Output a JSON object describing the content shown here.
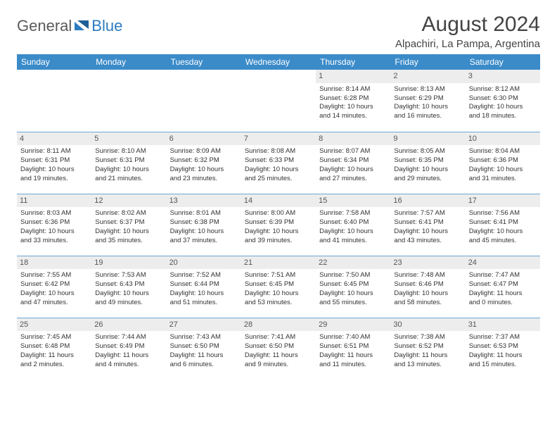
{
  "logo": {
    "general": "General",
    "blue": "Blue"
  },
  "title": "August 2024",
  "location": "Alpachiri, La Pampa, Argentina",
  "colors": {
    "header_bg": "#3b8bc9",
    "daynum_bg": "#ededed",
    "row_border": "#6aa8d4",
    "logo_gray": "#5a5a5a",
    "logo_blue": "#2c7bbf"
  },
  "weekdays": [
    "Sunday",
    "Monday",
    "Tuesday",
    "Wednesday",
    "Thursday",
    "Friday",
    "Saturday"
  ],
  "weeks": [
    [
      {
        "day": "",
        "lines": []
      },
      {
        "day": "",
        "lines": []
      },
      {
        "day": "",
        "lines": []
      },
      {
        "day": "",
        "lines": []
      },
      {
        "day": "1",
        "lines": [
          "Sunrise: 8:14 AM",
          "Sunset: 6:28 PM",
          "Daylight: 10 hours",
          "and 14 minutes."
        ]
      },
      {
        "day": "2",
        "lines": [
          "Sunrise: 8:13 AM",
          "Sunset: 6:29 PM",
          "Daylight: 10 hours",
          "and 16 minutes."
        ]
      },
      {
        "day": "3",
        "lines": [
          "Sunrise: 8:12 AM",
          "Sunset: 6:30 PM",
          "Daylight: 10 hours",
          "and 18 minutes."
        ]
      }
    ],
    [
      {
        "day": "4",
        "lines": [
          "Sunrise: 8:11 AM",
          "Sunset: 6:31 PM",
          "Daylight: 10 hours",
          "and 19 minutes."
        ]
      },
      {
        "day": "5",
        "lines": [
          "Sunrise: 8:10 AM",
          "Sunset: 6:31 PM",
          "Daylight: 10 hours",
          "and 21 minutes."
        ]
      },
      {
        "day": "6",
        "lines": [
          "Sunrise: 8:09 AM",
          "Sunset: 6:32 PM",
          "Daylight: 10 hours",
          "and 23 minutes."
        ]
      },
      {
        "day": "7",
        "lines": [
          "Sunrise: 8:08 AM",
          "Sunset: 6:33 PM",
          "Daylight: 10 hours",
          "and 25 minutes."
        ]
      },
      {
        "day": "8",
        "lines": [
          "Sunrise: 8:07 AM",
          "Sunset: 6:34 PM",
          "Daylight: 10 hours",
          "and 27 minutes."
        ]
      },
      {
        "day": "9",
        "lines": [
          "Sunrise: 8:05 AM",
          "Sunset: 6:35 PM",
          "Daylight: 10 hours",
          "and 29 minutes."
        ]
      },
      {
        "day": "10",
        "lines": [
          "Sunrise: 8:04 AM",
          "Sunset: 6:36 PM",
          "Daylight: 10 hours",
          "and 31 minutes."
        ]
      }
    ],
    [
      {
        "day": "11",
        "lines": [
          "Sunrise: 8:03 AM",
          "Sunset: 6:36 PM",
          "Daylight: 10 hours",
          "and 33 minutes."
        ]
      },
      {
        "day": "12",
        "lines": [
          "Sunrise: 8:02 AM",
          "Sunset: 6:37 PM",
          "Daylight: 10 hours",
          "and 35 minutes."
        ]
      },
      {
        "day": "13",
        "lines": [
          "Sunrise: 8:01 AM",
          "Sunset: 6:38 PM",
          "Daylight: 10 hours",
          "and 37 minutes."
        ]
      },
      {
        "day": "14",
        "lines": [
          "Sunrise: 8:00 AM",
          "Sunset: 6:39 PM",
          "Daylight: 10 hours",
          "and 39 minutes."
        ]
      },
      {
        "day": "15",
        "lines": [
          "Sunrise: 7:58 AM",
          "Sunset: 6:40 PM",
          "Daylight: 10 hours",
          "and 41 minutes."
        ]
      },
      {
        "day": "16",
        "lines": [
          "Sunrise: 7:57 AM",
          "Sunset: 6:41 PM",
          "Daylight: 10 hours",
          "and 43 minutes."
        ]
      },
      {
        "day": "17",
        "lines": [
          "Sunrise: 7:56 AM",
          "Sunset: 6:41 PM",
          "Daylight: 10 hours",
          "and 45 minutes."
        ]
      }
    ],
    [
      {
        "day": "18",
        "lines": [
          "Sunrise: 7:55 AM",
          "Sunset: 6:42 PM",
          "Daylight: 10 hours",
          "and 47 minutes."
        ]
      },
      {
        "day": "19",
        "lines": [
          "Sunrise: 7:53 AM",
          "Sunset: 6:43 PM",
          "Daylight: 10 hours",
          "and 49 minutes."
        ]
      },
      {
        "day": "20",
        "lines": [
          "Sunrise: 7:52 AM",
          "Sunset: 6:44 PM",
          "Daylight: 10 hours",
          "and 51 minutes."
        ]
      },
      {
        "day": "21",
        "lines": [
          "Sunrise: 7:51 AM",
          "Sunset: 6:45 PM",
          "Daylight: 10 hours",
          "and 53 minutes."
        ]
      },
      {
        "day": "22",
        "lines": [
          "Sunrise: 7:50 AM",
          "Sunset: 6:45 PM",
          "Daylight: 10 hours",
          "and 55 minutes."
        ]
      },
      {
        "day": "23",
        "lines": [
          "Sunrise: 7:48 AM",
          "Sunset: 6:46 PM",
          "Daylight: 10 hours",
          "and 58 minutes."
        ]
      },
      {
        "day": "24",
        "lines": [
          "Sunrise: 7:47 AM",
          "Sunset: 6:47 PM",
          "Daylight: 11 hours",
          "and 0 minutes."
        ]
      }
    ],
    [
      {
        "day": "25",
        "lines": [
          "Sunrise: 7:45 AM",
          "Sunset: 6:48 PM",
          "Daylight: 11 hours",
          "and 2 minutes."
        ]
      },
      {
        "day": "26",
        "lines": [
          "Sunrise: 7:44 AM",
          "Sunset: 6:49 PM",
          "Daylight: 11 hours",
          "and 4 minutes."
        ]
      },
      {
        "day": "27",
        "lines": [
          "Sunrise: 7:43 AM",
          "Sunset: 6:50 PM",
          "Daylight: 11 hours",
          "and 6 minutes."
        ]
      },
      {
        "day": "28",
        "lines": [
          "Sunrise: 7:41 AM",
          "Sunset: 6:50 PM",
          "Daylight: 11 hours",
          "and 9 minutes."
        ]
      },
      {
        "day": "29",
        "lines": [
          "Sunrise: 7:40 AM",
          "Sunset: 6:51 PM",
          "Daylight: 11 hours",
          "and 11 minutes."
        ]
      },
      {
        "day": "30",
        "lines": [
          "Sunrise: 7:38 AM",
          "Sunset: 6:52 PM",
          "Daylight: 11 hours",
          "and 13 minutes."
        ]
      },
      {
        "day": "31",
        "lines": [
          "Sunrise: 7:37 AM",
          "Sunset: 6:53 PM",
          "Daylight: 11 hours",
          "and 15 minutes."
        ]
      }
    ]
  ]
}
